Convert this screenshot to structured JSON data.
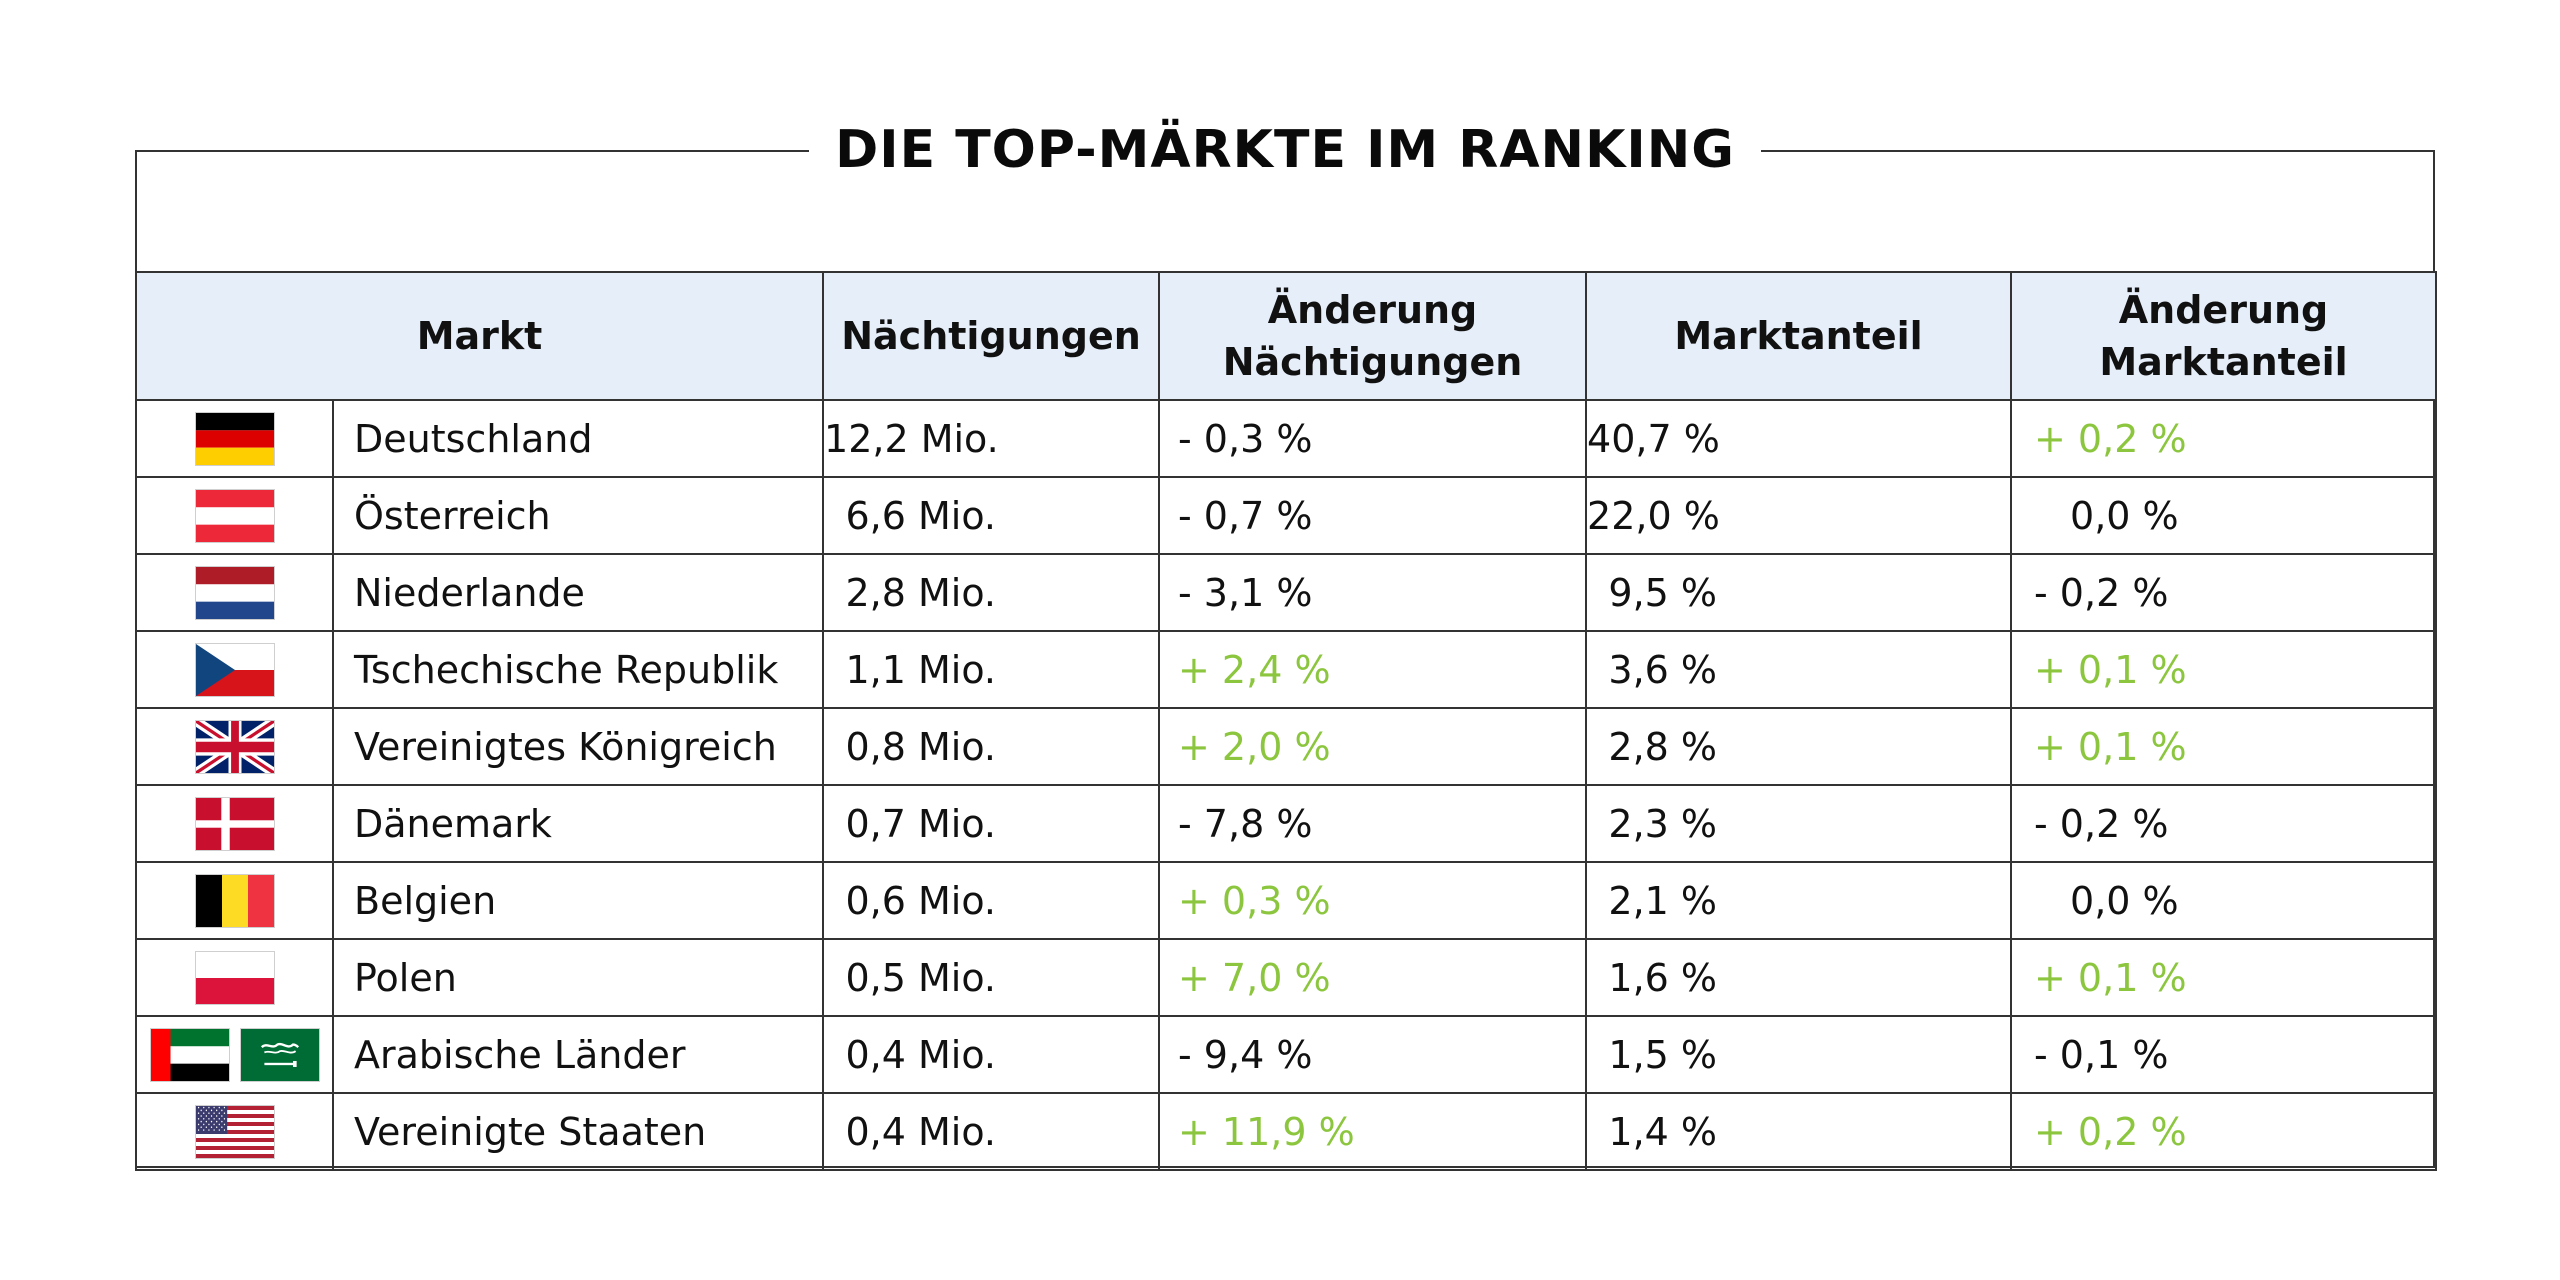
{
  "title": "DIE TOP-MÄRKTE IM RANKING",
  "table": {
    "headers": {
      "markt": "Markt",
      "naechtigungen": "Nächtigungen",
      "aenderung_naechtigungen_1": "Änderung",
      "aenderung_naechtigungen_2": "Nächtigungen",
      "marktanteil": "Marktanteil",
      "aenderung_marktanteil_1": "Änderung",
      "aenderung_marktanteil_2": "Marktanteil"
    },
    "rows": [
      {
        "flags": [
          "germany-flag-icon"
        ],
        "country": "Deutschland",
        "naechtigungen": "12,2 Mio.",
        "aenderung_naechtigungen": "- 0,3 %",
        "aenderung_naechtigungen_trend": "negative",
        "marktanteil": "40,7 %",
        "aenderung_marktanteil": "+ 0,2 %",
        "aenderung_marktanteil_trend": "positive"
      },
      {
        "flags": [
          "austria-flag-icon"
        ],
        "country": "Österreich",
        "naechtigungen": "6,6 Mio.",
        "aenderung_naechtigungen": "- 0,7 %",
        "aenderung_naechtigungen_trend": "negative",
        "marktanteil": "22,0 %",
        "aenderung_marktanteil": "0,0 %",
        "aenderung_marktanteil_trend": "neutral"
      },
      {
        "flags": [
          "netherlands-flag-icon"
        ],
        "country": "Niederlande",
        "naechtigungen": "2,8 Mio.",
        "aenderung_naechtigungen": "- 3,1 %",
        "aenderung_naechtigungen_trend": "negative",
        "marktanteil": "9,5 %",
        "aenderung_marktanteil": "- 0,2 %",
        "aenderung_marktanteil_trend": "negative"
      },
      {
        "flags": [
          "czech-republic-flag-icon"
        ],
        "country": "Tschechische Republik",
        "naechtigungen": "1,1 Mio.",
        "aenderung_naechtigungen": "+ 2,4 %",
        "aenderung_naechtigungen_trend": "positive",
        "marktanteil": "3,6 %",
        "aenderung_marktanteil": "+ 0,1 %",
        "aenderung_marktanteil_trend": "positive"
      },
      {
        "flags": [
          "united-kingdom-flag-icon"
        ],
        "country": "Vereinigtes Königreich",
        "naechtigungen": "0,8 Mio.",
        "aenderung_naechtigungen": "+ 2,0 %",
        "aenderung_naechtigungen_trend": "positive",
        "marktanteil": "2,8 %",
        "aenderung_marktanteil": "+ 0,1 %",
        "aenderung_marktanteil_trend": "positive"
      },
      {
        "flags": [
          "denmark-flag-icon"
        ],
        "country": "Dänemark",
        "naechtigungen": "0,7 Mio.",
        "aenderung_naechtigungen": "- 7,8 %",
        "aenderung_naechtigungen_trend": "negative",
        "marktanteil": "2,3 %",
        "aenderung_marktanteil": "- 0,2 %",
        "aenderung_marktanteil_trend": "negative"
      },
      {
        "flags": [
          "belgium-flag-icon"
        ],
        "country": "Belgien",
        "naechtigungen": "0,6 Mio.",
        "aenderung_naechtigungen": "+ 0,3 %",
        "aenderung_naechtigungen_trend": "positive",
        "marktanteil": "2,1 %",
        "aenderung_marktanteil": "0,0 %",
        "aenderung_marktanteil_trend": "neutral"
      },
      {
        "flags": [
          "poland-flag-icon"
        ],
        "country": "Polen",
        "naechtigungen": "0,5 Mio.",
        "aenderung_naechtigungen": "+ 7,0 %",
        "aenderung_naechtigungen_trend": "positive",
        "marktanteil": "1,6 %",
        "aenderung_marktanteil": "+ 0,1 %",
        "aenderung_marktanteil_trend": "positive"
      },
      {
        "flags": [
          "uae-flag-icon",
          "saudi-arabia-flag-icon"
        ],
        "country": "Arabische Länder",
        "naechtigungen": "0,4 Mio.",
        "aenderung_naechtigungen": "- 9,4 %",
        "aenderung_naechtigungen_trend": "negative",
        "marktanteil": "1,5 %",
        "aenderung_marktanteil": "- 0,1 %",
        "aenderung_marktanteil_trend": "negative"
      },
      {
        "flags": [
          "usa-flag-icon"
        ],
        "country": "Vereinigte Staaten",
        "naechtigungen": "0,4 Mio.",
        "aenderung_naechtigungen": "+ 11,9 %",
        "aenderung_naechtigungen_trend": "positive",
        "marktanteil": "1,4 %",
        "aenderung_marktanteil": "+ 0,2 %",
        "aenderung_marktanteil_trend": "positive"
      }
    ]
  },
  "colors": {
    "header_background": "#e6eefa",
    "positive_change": "#8cc63f",
    "negative_change": "#111111",
    "border": "#333333"
  }
}
